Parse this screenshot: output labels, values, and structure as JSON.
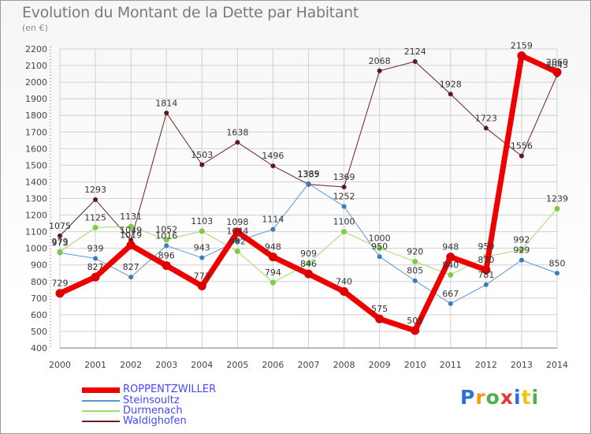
{
  "title": "Evolution du Montant de la Dette par Habitant",
  "unit": "(en €)",
  "logo": {
    "text": "Proxiti",
    "colors": [
      "#2d6fd6",
      "#f39c12",
      "#4caf50",
      "#e53935",
      "#2d6fd6",
      "#f1c40f",
      "#4caf50"
    ]
  },
  "chart_data": {
    "type": "line",
    "x": [
      2000,
      2001,
      2002,
      2003,
      2004,
      2005,
      2006,
      2007,
      2008,
      2009,
      2010,
      2011,
      2012,
      2013,
      2014
    ],
    "ylim": [
      400,
      2200
    ],
    "yticks": [
      400,
      500,
      600,
      700,
      800,
      900,
      1000,
      1100,
      1200,
      1300,
      1400,
      1500,
      1600,
      1700,
      1800,
      1900,
      2000,
      2100,
      2200
    ],
    "grid": true,
    "legend_position": "bottom-left",
    "series": [
      {
        "name": "Waldighofen",
        "color": "#6b1f24",
        "width": 1,
        "marker": 3,
        "markerColor": "#5a1a1e",
        "values": [
          1075,
          1293,
          1049,
          1814,
          1503,
          1638,
          1496,
          1385,
          1369,
          2068,
          2124,
          1928,
          1723,
          1556,
          2043
        ]
      },
      {
        "name": "Steinsoultz",
        "color": "#5a97d1",
        "width": 1,
        "marker": 3,
        "markerColor": "#3a7cc0",
        "values": [
          973,
          939,
          827,
          1016,
          943,
          1044,
          1114,
          1389,
          1252,
          950,
          805,
          667,
          781,
          929,
          850
        ]
      },
      {
        "name": "Durmenach",
        "color": "#9edc67",
        "width": 1,
        "marker": 3.5,
        "markerColor": "#7ccc44",
        "values": [
          979,
          1125,
          1131,
          1052,
          1103,
          982,
          794,
          909,
          1100,
          1000,
          920,
          840,
          950,
          992,
          1239
        ]
      },
      {
        "name": "ROPPENTZWILLER",
        "color": "#ee0000",
        "width": 7,
        "marker": 5.5,
        "markerColor": "#dd0000",
        "values": [
          729,
          827,
          1019,
          896,
          773,
          1098,
          948,
          846,
          740,
          575,
          505,
          948,
          870,
          2159,
          2060
        ]
      }
    ],
    "data_labels": [
      {
        "text": "1075",
        "x": 2000,
        "y": 1075
      },
      {
        "text": "1293",
        "x": 2001,
        "y": 1293
      },
      {
        "text": "1049",
        "x": 2002,
        "y": 1049
      },
      {
        "text": "1814",
        "x": 2003,
        "y": 1814
      },
      {
        "text": "1503",
        "x": 2004,
        "y": 1503
      },
      {
        "text": "1638",
        "x": 2005,
        "y": 1638
      },
      {
        "text": "1496",
        "x": 2006,
        "y": 1496
      },
      {
        "text": "1385",
        "x": 2007,
        "y": 1385
      },
      {
        "text": "1369",
        "x": 2008,
        "y": 1369
      },
      {
        "text": "2068",
        "x": 2009,
        "y": 2068
      },
      {
        "text": "2124",
        "x": 2010,
        "y": 2124
      },
      {
        "text": "1928",
        "x": 2011,
        "y": 1928
      },
      {
        "text": "1723",
        "x": 2012,
        "y": 1723
      },
      {
        "text": "1556",
        "x": 2013,
        "y": 1556
      },
      {
        "text": "2043",
        "x": 2014,
        "y": 2043
      },
      {
        "text": "973",
        "x": 2000,
        "y": 973
      },
      {
        "text": "939",
        "x": 2001,
        "y": 939
      },
      {
        "text": "827",
        "x": 2002,
        "y": 827
      },
      {
        "text": "1016",
        "x": 2003,
        "y": 1016
      },
      {
        "text": "943",
        "x": 2004,
        "y": 943
      },
      {
        "text": "1044",
        "x": 2005,
        "y": 1044
      },
      {
        "text": "1114",
        "x": 2006,
        "y": 1114
      },
      {
        "text": "1389",
        "x": 2007,
        "y": 1389
      },
      {
        "text": "1252",
        "x": 2008,
        "y": 1252
      },
      {
        "text": "950",
        "x": 2009,
        "y": 950
      },
      {
        "text": "805",
        "x": 2010,
        "y": 805
      },
      {
        "text": "667",
        "x": 2011,
        "y": 667
      },
      {
        "text": "781",
        "x": 2012,
        "y": 781
      },
      {
        "text": "929",
        "x": 2013,
        "y": 929
      },
      {
        "text": "850",
        "x": 2014,
        "y": 850
      },
      {
        "text": "979",
        "x": 2000,
        "y": 979
      },
      {
        "text": "1125",
        "x": 2001,
        "y": 1125
      },
      {
        "text": "1131",
        "x": 2002,
        "y": 1131
      },
      {
        "text": "1052",
        "x": 2003,
        "y": 1052
      },
      {
        "text": "1103",
        "x": 2004,
        "y": 1103
      },
      {
        "text": "982",
        "x": 2005,
        "y": 982
      },
      {
        "text": "794",
        "x": 2006,
        "y": 794
      },
      {
        "text": "909",
        "x": 2007,
        "y": 909
      },
      {
        "text": "1100",
        "x": 2008,
        "y": 1100
      },
      {
        "text": "1000",
        "x": 2009,
        "y": 1000
      },
      {
        "text": "920",
        "x": 2010,
        "y": 920
      },
      {
        "text": "840",
        "x": 2011,
        "y": 840
      },
      {
        "text": "950",
        "x": 2012,
        "y": 950
      },
      {
        "text": "992",
        "x": 2013,
        "y": 992
      },
      {
        "text": "1239",
        "x": 2014,
        "y": 1239
      },
      {
        "text": "729",
        "x": 2000,
        "y": 729
      },
      {
        "text": "827",
        "x": 2001,
        "y": 827
      },
      {
        "text": "1019",
        "x": 2002,
        "y": 1019
      },
      {
        "text": "896",
        "x": 2003,
        "y": 896
      },
      {
        "text": "773",
        "x": 2004,
        "y": 773
      },
      {
        "text": "1098",
        "x": 2005,
        "y": 1098
      },
      {
        "text": "948",
        "x": 2006,
        "y": 948
      },
      {
        "text": "846",
        "x": 2007,
        "y": 846
      },
      {
        "text": "740",
        "x": 2008,
        "y": 740
      },
      {
        "text": "575",
        "x": 2009,
        "y": 575
      },
      {
        "text": "505",
        "x": 2010,
        "y": 505
      },
      {
        "text": "948",
        "x": 2011,
        "y": 948
      },
      {
        "text": "870",
        "x": 2012,
        "y": 870
      },
      {
        "text": "2159",
        "x": 2013,
        "y": 2159
      },
      {
        "text": "2060",
        "x": 2014,
        "y": 2060
      }
    ]
  },
  "legend": [
    {
      "label": "ROPPENTZWILLER",
      "color": "#ee0000",
      "thickness": 7
    },
    {
      "label": "Steinsoultz",
      "color": "#5a97d1",
      "thickness": 2
    },
    {
      "label": "Durmenach",
      "color": "#9edc67",
      "thickness": 2
    },
    {
      "label": "Waldighofen",
      "color": "#6b1f24",
      "thickness": 2
    }
  ]
}
